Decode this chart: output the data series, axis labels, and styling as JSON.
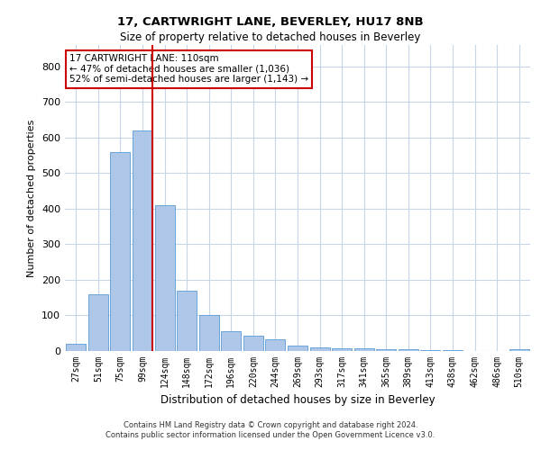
{
  "title1": "17, CARTWRIGHT LANE, BEVERLEY, HU17 8NB",
  "title2": "Size of property relative to detached houses in Beverley",
  "xlabel": "Distribution of detached houses by size in Beverley",
  "ylabel": "Number of detached properties",
  "footer1": "Contains HM Land Registry data © Crown copyright and database right 2024.",
  "footer2": "Contains public sector information licensed under the Open Government Licence v3.0.",
  "bar_color": "#aec6e8",
  "bar_edge_color": "#5b9bd5",
  "grid_color": "#c8d4e8",
  "annotation_box_color": "#cc0000",
  "annotation_line_color": "#cc0000",
  "categories": [
    "27sqm",
    "51sqm",
    "75sqm",
    "99sqm",
    "124sqm",
    "148sqm",
    "172sqm",
    "196sqm",
    "220sqm",
    "244sqm",
    "269sqm",
    "293sqm",
    "317sqm",
    "341sqm",
    "365sqm",
    "389sqm",
    "413sqm",
    "438sqm",
    "462sqm",
    "486sqm",
    "510sqm"
  ],
  "values": [
    20,
    160,
    560,
    620,
    410,
    170,
    100,
    55,
    43,
    32,
    15,
    10,
    8,
    7,
    5,
    4,
    3,
    2,
    1,
    0,
    6
  ],
  "property_bin_index": 3,
  "annotation_text": "17 CARTWRIGHT LANE: 110sqm\n← 47% of detached houses are smaller (1,036)\n52% of semi-detached houses are larger (1,143) →",
  "ylim": [
    0,
    860
  ],
  "yticks": [
    0,
    100,
    200,
    300,
    400,
    500,
    600,
    700,
    800
  ]
}
